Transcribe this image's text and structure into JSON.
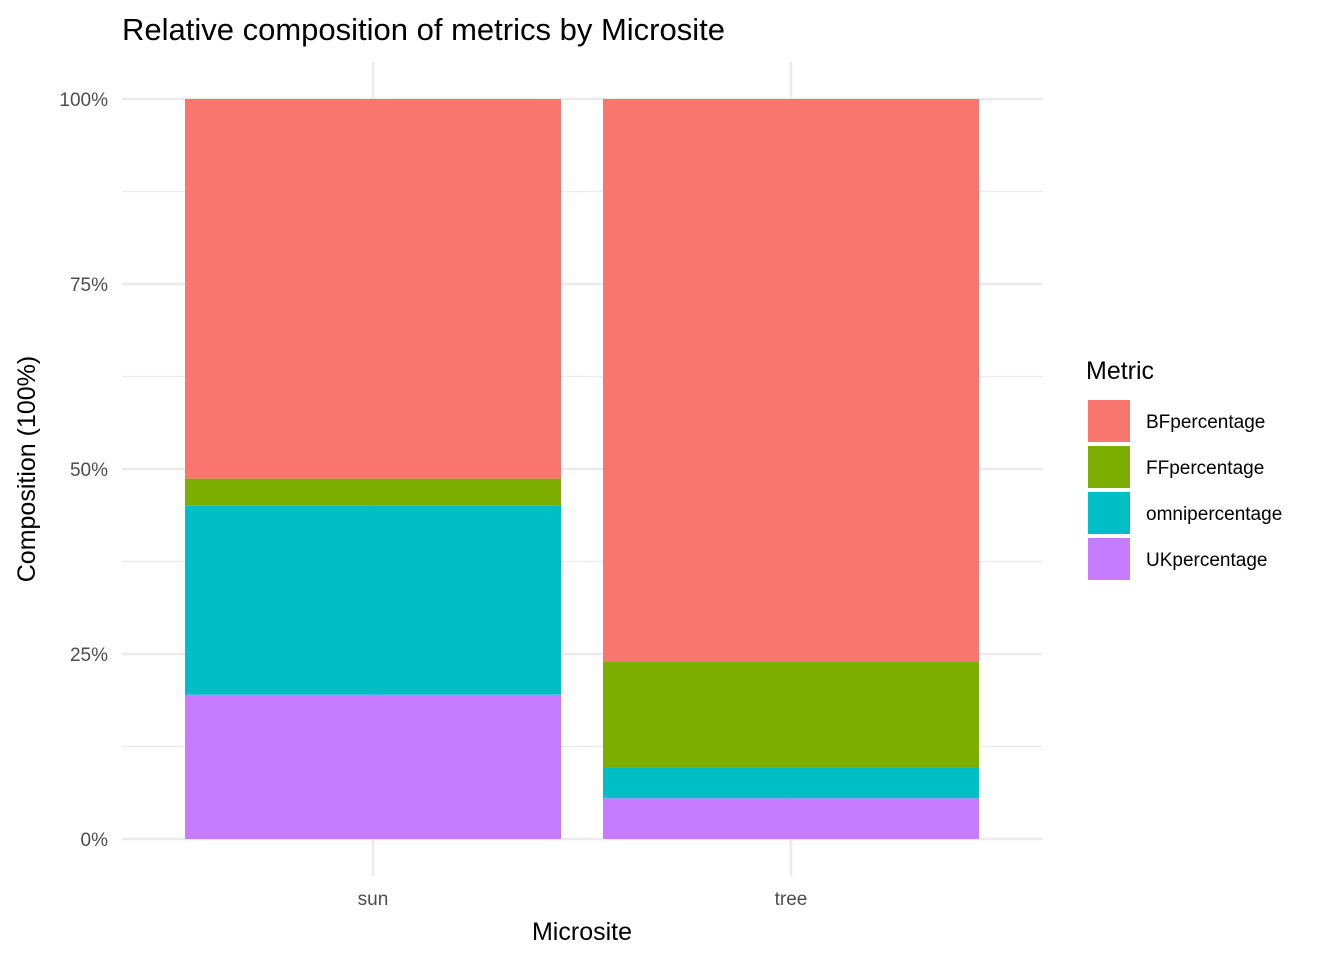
{
  "chart_data": {
    "type": "bar",
    "stacked": true,
    "normalized": true,
    "title": "Relative composition of metrics by Microsite",
    "xlabel": "Microsite",
    "ylabel": "Composition (100%)",
    "categories": [
      "sun",
      "tree"
    ],
    "ylim": [
      0,
      1
    ],
    "yticks": [
      0,
      0.25,
      0.5,
      0.75,
      1.0
    ],
    "ytick_labels": [
      "0%",
      "25%",
      "50%",
      "75%",
      "100%"
    ],
    "grid": true,
    "legend": {
      "title": "Metric",
      "position": "right"
    },
    "series": [
      {
        "name": "UKpercentage",
        "color": "#C77CFF",
        "values": [
          0.195,
          0.055
        ]
      },
      {
        "name": "omnipercentage",
        "color": "#00BFC4",
        "values": [
          0.256,
          0.041
        ]
      },
      {
        "name": "FFpercentage",
        "color": "#7CAE00",
        "values": [
          0.036,
          0.144
        ]
      },
      {
        "name": "BFpercentage",
        "color": "#F8766D",
        "values": [
          0.513,
          0.76
        ]
      }
    ],
    "legend_order": [
      "BFpercentage",
      "FFpercentage",
      "omnipercentage",
      "UKpercentage"
    ]
  }
}
